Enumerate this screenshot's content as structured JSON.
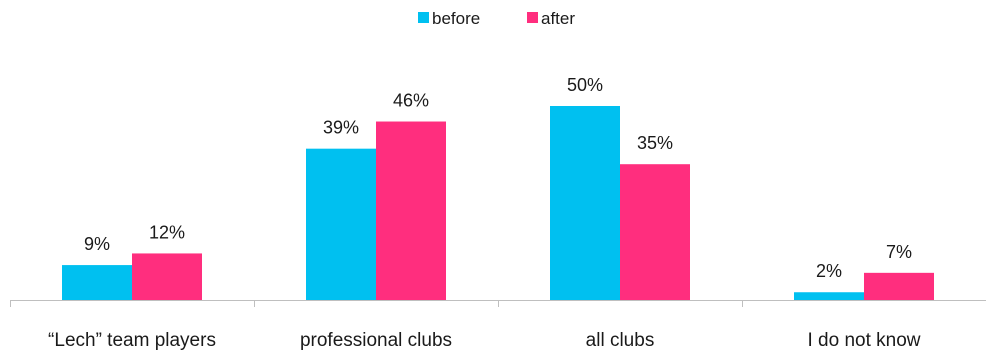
{
  "chart_data": {
    "type": "bar",
    "categories": [
      "“Lech” team players",
      "professional clubs",
      "all clubs",
      "I do not know"
    ],
    "series": [
      {
        "name": "before",
        "color": "#00c0f0",
        "values": [
          9,
          39,
          50,
          2
        ],
        "labels": [
          "9%",
          "39%",
          "50%",
          "2%"
        ]
      },
      {
        "name": "after",
        "color": "#ff2e7e",
        "values": [
          12,
          46,
          35,
          7
        ],
        "labels": [
          "12%",
          "46%",
          "35%",
          "7%"
        ]
      }
    ],
    "title": "",
    "xlabel": "",
    "ylabel": "",
    "ylim": [
      0,
      50
    ],
    "grid": false,
    "legend_position": "top-center",
    "axis_color": "#bfbfbf"
  }
}
